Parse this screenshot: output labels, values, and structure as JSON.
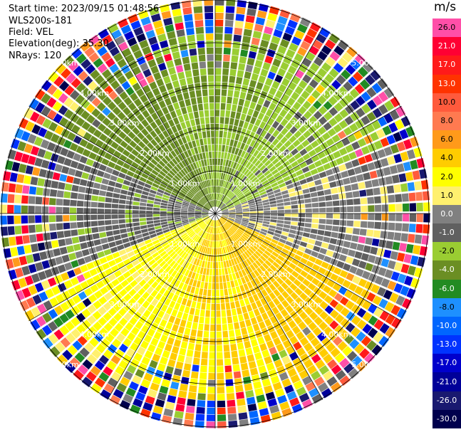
{
  "header": {
    "start_time": "Start time: 2023/09/15 01:48:56",
    "site": "WLS200s-181",
    "field": "Field: VEL",
    "elevation": "Elevation(deg): 35.30",
    "nrays": "NRays: 120"
  },
  "colorbar": {
    "unit": "m/s",
    "ticks": [
      "26.0",
      "21.0",
      "17.0",
      "13.0",
      "10.0",
      "8.0",
      "6.0",
      "4.0",
      "2.0",
      "1.0",
      "0.0",
      "-1.0",
      "-2.0",
      "-4.0",
      "-6.0",
      "-8.0",
      "-10.0",
      "-13.0",
      "-17.0",
      "-21.0",
      "-26.0",
      "-30.0"
    ],
    "colors": [
      "#ff4fa8",
      "#ff0033",
      "#ff1a1a",
      "#ff3300",
      "#ff5a3c",
      "#ff7a50",
      "#ff9a1a",
      "#ffcc00",
      "#ffff00",
      "#fff06e",
      "#808080",
      "#606060",
      "#9acd32",
      "#6b8e23",
      "#228b22",
      "#1e90ff",
      "#0066ff",
      "#0033ff",
      "#0000cc",
      "#000099",
      "#191970",
      "#00004d"
    ]
  },
  "chart_data": {
    "type": "polar_ppi",
    "field": "VEL",
    "units": "m/s",
    "range_rings_km": [
      1,
      2,
      3,
      4,
      5
    ],
    "range_labels": [
      "1.00km",
      "2.00km",
      "3.00km",
      "4.00km",
      "5.00km"
    ],
    "nrays": 120,
    "elevation_deg": 35.3,
    "dominant_velocity_by_sector": [
      {
        "sector": "north-west",
        "velocity_ms": -4.0
      },
      {
        "sector": "north",
        "velocity_ms": -3.0
      },
      {
        "sector": "north-east",
        "velocity_ms": -2.0
      },
      {
        "sector": "east",
        "velocity_ms": 0.0
      },
      {
        "sector": "south-east",
        "velocity_ms": 4.0
      },
      {
        "sector": "south",
        "velocity_ms": 3.0
      },
      {
        "sector": "south-west",
        "velocity_ms": 2.0
      },
      {
        "sector": "west",
        "velocity_ms": -1.0
      }
    ],
    "noisy_beyond_km": 4.3
  }
}
